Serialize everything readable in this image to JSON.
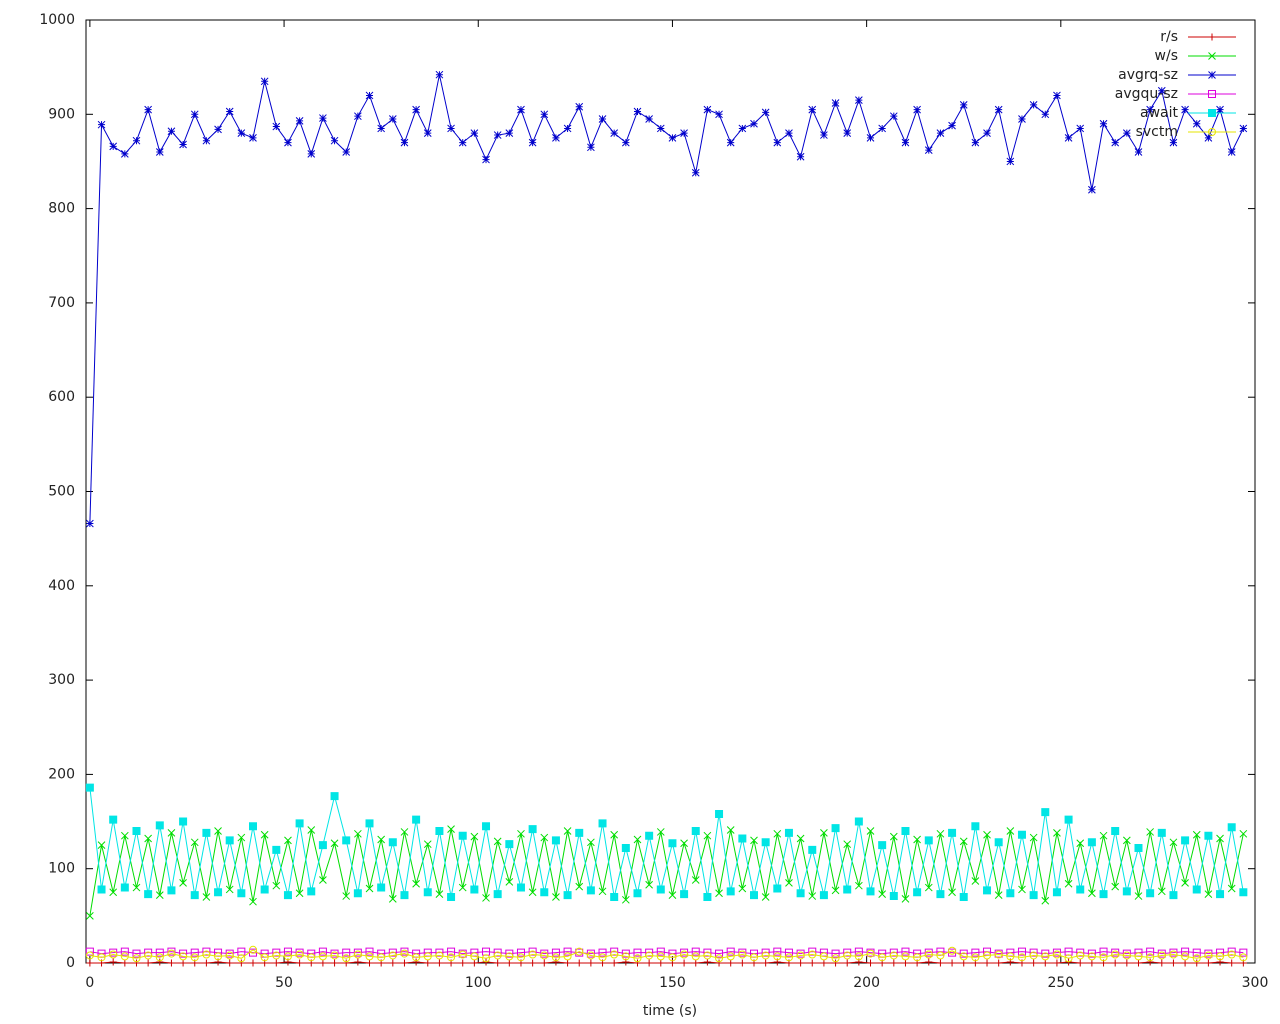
{
  "chart_data": {
    "type": "line",
    "x_label": "time (s)",
    "xlim": [
      -1,
      300
    ],
    "ylim": [
      0,
      1000
    ],
    "xticks": [
      0,
      50,
      100,
      150,
      200,
      250,
      300
    ],
    "yticks": [
      0,
      100,
      200,
      300,
      400,
      500,
      600,
      700,
      800,
      900,
      1000
    ],
    "legend": "top-right",
    "x": [
      0,
      3,
      6,
      9,
      12,
      15,
      18,
      21,
      24,
      27,
      30,
      33,
      36,
      39,
      42,
      45,
      48,
      51,
      54,
      57,
      60,
      63,
      66,
      69,
      72,
      75,
      78,
      81,
      84,
      87,
      90,
      93,
      96,
      99,
      102,
      105,
      108,
      111,
      114,
      117,
      120,
      123,
      126,
      129,
      132,
      135,
      138,
      141,
      144,
      147,
      150,
      153,
      156,
      159,
      162,
      165,
      168,
      171,
      174,
      177,
      180,
      183,
      186,
      189,
      192,
      195,
      198,
      201,
      204,
      207,
      210,
      213,
      216,
      219,
      222,
      225,
      228,
      231,
      234,
      237,
      240,
      243,
      246,
      249,
      252,
      255,
      258,
      261,
      264,
      267,
      270,
      273,
      276,
      279,
      282,
      285,
      288,
      291,
      294,
      297
    ],
    "series": [
      {
        "name": "r/s",
        "color": "#cc0000",
        "marker": "plus",
        "values": [
          0,
          0,
          1,
          0,
          0,
          0,
          1,
          0,
          0,
          0,
          0,
          1,
          0,
          0,
          0,
          0,
          0,
          1,
          0,
          0,
          0,
          0,
          0,
          1,
          0,
          0,
          0,
          0,
          1,
          0,
          0,
          0,
          0,
          0,
          1,
          0,
          0,
          0,
          0,
          0,
          1,
          0,
          0,
          0,
          0,
          0,
          1,
          0,
          0,
          0,
          0,
          0,
          0,
          1,
          0,
          0,
          0,
          0,
          0,
          1,
          0,
          0,
          0,
          0,
          0,
          0,
          1,
          0,
          0,
          0,
          0,
          0,
          1,
          0,
          0,
          0,
          0,
          0,
          0,
          1,
          0,
          0,
          0,
          0,
          1,
          0,
          0,
          0,
          0,
          0,
          0,
          1,
          0,
          0,
          0,
          0,
          0,
          1,
          0,
          0
        ]
      },
      {
        "name": "w/s",
        "color": "#00dd00",
        "marker": "cross",
        "values": [
          50,
          125,
          75,
          135,
          80,
          132,
          72,
          138,
          85,
          128,
          70,
          140,
          78,
          133,
          65,
          136,
          82,
          130,
          74,
          141,
          88,
          127,
          71,
          137,
          79,
          131,
          68,
          139,
          84,
          126,
          73,
          142,
          80,
          134,
          69,
          129,
          86,
          137,
          75,
          133,
          70,
          140,
          81,
          128,
          76,
          136,
          67,
          131,
          83,
          139,
          72,
          127,
          88,
          135,
          74,
          141,
          79,
          130,
          70,
          137,
          85,
          132,
          71,
          138,
          77,
          126,
          82,
          140,
          73,
          134,
          68,
          131,
          80,
          137,
          75,
          129,
          87,
          136,
          72,
          140,
          78,
          133,
          66,
          138,
          84,
          127,
          74,
          135,
          81,
          130,
          71,
          139,
          76,
          128,
          85,
          136,
          73,
          132,
          79,
          137
        ]
      },
      {
        "name": "avgrq-sz",
        "color": "#0000cc",
        "marker": "star",
        "values": [
          466,
          889,
          866,
          858,
          872,
          905,
          860,
          882,
          868,
          900,
          872,
          884,
          903,
          880,
          875,
          935,
          887,
          870,
          893,
          858,
          896,
          872,
          860,
          898,
          920,
          885,
          895,
          870,
          905,
          880,
          942,
          885,
          870,
          880,
          852,
          878,
          880,
          905,
          870,
          900,
          875,
          885,
          908,
          865,
          895,
          880,
          870,
          903,
          895,
          885,
          875,
          880,
          838,
          905,
          900,
          870,
          885,
          890,
          902,
          870,
          880,
          855,
          905,
          878,
          912,
          880,
          915,
          875,
          885,
          898,
          870,
          905,
          862,
          880,
          888,
          910,
          870,
          880,
          905,
          850,
          895,
          910,
          900,
          920,
          875,
          885,
          820,
          890,
          870,
          880,
          860,
          905,
          925,
          870,
          905,
          890,
          875,
          905,
          860,
          885
        ]
      },
      {
        "name": "avgqu-sz",
        "color": "#dd00dd",
        "marker": "open-square",
        "values": [
          12,
          10,
          11,
          12,
          10,
          11,
          11,
          12,
          10,
          11,
          12,
          11,
          10,
          12,
          11,
          10,
          11,
          12,
          11,
          10,
          12,
          10,
          11,
          11,
          12,
          10,
          11,
          12,
          10,
          11,
          11,
          12,
          10,
          11,
          12,
          11,
          10,
          11,
          12,
          10,
          11,
          12,
          11,
          10,
          11,
          12,
          10,
          11,
          11,
          12,
          10,
          11,
          12,
          11,
          10,
          12,
          11,
          10,
          11,
          12,
          11,
          10,
          12,
          11,
          10,
          11,
          12,
          11,
          10,
          11,
          12,
          10,
          11,
          12,
          11,
          10,
          11,
          12,
          10,
          11,
          12,
          11,
          10,
          11,
          12,
          11,
          10,
          12,
          11,
          10,
          11,
          12,
          10,
          11,
          12,
          11,
          10,
          11,
          12,
          11
        ]
      },
      {
        "name": "await",
        "color": "#00e5e5",
        "marker": "filled-square",
        "values": [
          186,
          78,
          152,
          80,
          140,
          73,
          146,
          77,
          150,
          72,
          138,
          75,
          130,
          74,
          145,
          78,
          120,
          72,
          148,
          76,
          125,
          177,
          130,
          74,
          148,
          80,
          128,
          72,
          152,
          75,
          140,
          70,
          135,
          78,
          145,
          73,
          126,
          80,
          142,
          75,
          130,
          72,
          138,
          77,
          148,
          70,
          122,
          74,
          135,
          78,
          127,
          73,
          140,
          70,
          158,
          76,
          132,
          72,
          128,
          79,
          138,
          74,
          120,
          72,
          143,
          78,
          150,
          76,
          125,
          71,
          140,
          75,
          130,
          73,
          138,
          70,
          145,
          77,
          128,
          74,
          136,
          72,
          160,
          75,
          152,
          78,
          128,
          73,
          140,
          76,
          122,
          74,
          138,
          72,
          130,
          78,
          135,
          73,
          144,
          75
        ]
      },
      {
        "name": "svctm",
        "color": "#e5e500",
        "marker": "open-circle",
        "values": [
          8,
          6,
          9,
          7,
          5,
          8,
          6,
          10,
          7,
          6,
          9,
          7,
          8,
          5,
          14,
          6,
          8,
          7,
          9,
          6,
          7,
          8,
          5,
          9,
          7,
          6,
          8,
          10,
          6,
          7,
          8,
          6,
          9,
          7,
          5,
          8,
          7,
          6,
          9,
          8,
          6,
          7,
          12,
          8,
          6,
          9,
          7,
          5,
          8,
          7,
          6,
          9,
          7,
          8,
          5,
          7,
          9,
          6,
          8,
          7,
          6,
          8,
          9,
          7,
          5,
          8,
          7,
          10,
          6,
          8,
          7,
          6,
          9,
          8,
          13,
          7,
          6,
          8,
          9,
          7,
          6,
          8,
          7,
          9,
          5,
          8,
          7,
          6,
          9,
          8,
          7,
          6,
          8,
          9,
          7,
          5,
          8,
          7,
          9,
          6
        ]
      }
    ]
  }
}
